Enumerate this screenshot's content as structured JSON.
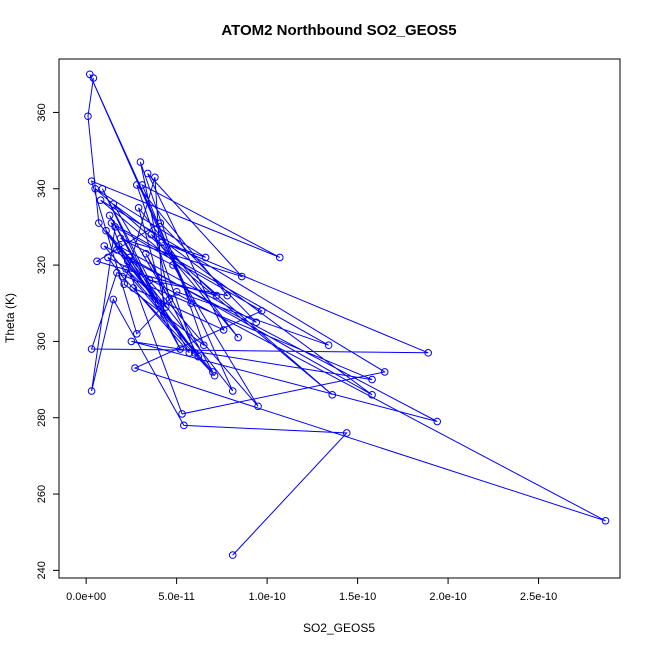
{
  "chart_data": {
    "type": "line",
    "title": "ATOM2 Northbound SO2_GEOS5",
    "xlabel": "SO2_GEOS5",
    "ylabel": "Theta (K)",
    "xlim": [
      -1.5e-11,
      2.95e-10
    ],
    "ylim": [
      238,
      374
    ],
    "x_ticks": [
      0,
      5e-11,
      1e-10,
      1.5e-10,
      2e-10,
      2.5e-10
    ],
    "x_tick_labels": [
      "0.0e+00",
      "5.0e-11",
      "1.0e-10",
      "1.5e-10",
      "2.0e-10",
      "2.5e-10"
    ],
    "y_ticks": [
      240,
      260,
      280,
      300,
      320,
      340,
      360
    ],
    "y_tick_labels": [
      "240",
      "260",
      "280",
      "300",
      "320",
      "340",
      "360"
    ],
    "grid": false,
    "legend": "none",
    "marker": "open-circle",
    "color": "#0000ff",
    "series": [
      {
        "x": [
          8.1e-11,
          1.44e-10,
          5.4e-11,
          1.5e-11,
          3e-12,
          1.6e-11,
          9.7e-11,
          2.7e-11,
          2.87e-10,
          1.2e-11,
          2e-11,
          7.1e-11,
          1e-11,
          1.94e-10,
          2.5e-11,
          1.58e-10,
          1.7e-11,
          3e-12,
          1.89e-10,
          4.2e-11,
          6.6e-11,
          5e-12,
          1.36e-10,
          8e-12,
          1.65e-10,
          5.3e-11,
          1.4e-11,
          1.34e-10,
          5e-11,
          2.8e-11,
          3e-12,
          1.07e-10,
          3.1e-11,
          5.8e-11,
          2e-12,
          8.1e-11,
          1.8e-11,
          9.4e-11,
          4.1e-11,
          6e-12,
          7.2e-11,
          3.6e-11,
          8.4e-11,
          2.9e-11,
          4.4e-11,
          2.2e-11,
          7e-11,
          3.3e-11,
          6.2e-11,
          1.1e-11,
          9.5e-11,
          4.8e-11,
          1.9e-11,
          8.6e-11,
          3.4e-11,
          7.6e-11,
          2.6e-11,
          5.7e-11,
          1.3e-11,
          4.3e-11,
          3.8e-11,
          2.1e-11,
          6.5e-11,
          3e-11,
          4.6e-11,
          1.5e-11,
          1.58e-10,
          2.4e-11,
          5.2e-11,
          9e-12,
          3.5e-11,
          7.8e-11,
          2.8e-11,
          6e-11,
          1.7e-11,
          4e-11,
          2.3e-11,
          7e-12,
          1e-12,
          4e-12
        ],
        "y": [
          244,
          276,
          278,
          311,
          287,
          330,
          308,
          293,
          253,
          322,
          317,
          291,
          325,
          279,
          300,
          290,
          318,
          298,
          297,
          326,
          322,
          340,
          286,
          337,
          292,
          281,
          331,
          299,
          313,
          302,
          342,
          322,
          341,
          310,
          370,
          287,
          325,
          305,
          331,
          321,
          312,
          328,
          301,
          335,
          309,
          319,
          292,
          323,
          296,
          329,
          283,
          320,
          327,
          317,
          344,
          303,
          314,
          297,
          333,
          307,
          343,
          315,
          299,
          347,
          311,
          336,
          286,
          322,
          298,
          340,
          316,
          312,
          341,
          297,
          324,
          310,
          321,
          331,
          359,
          369
        ]
      }
    ]
  }
}
